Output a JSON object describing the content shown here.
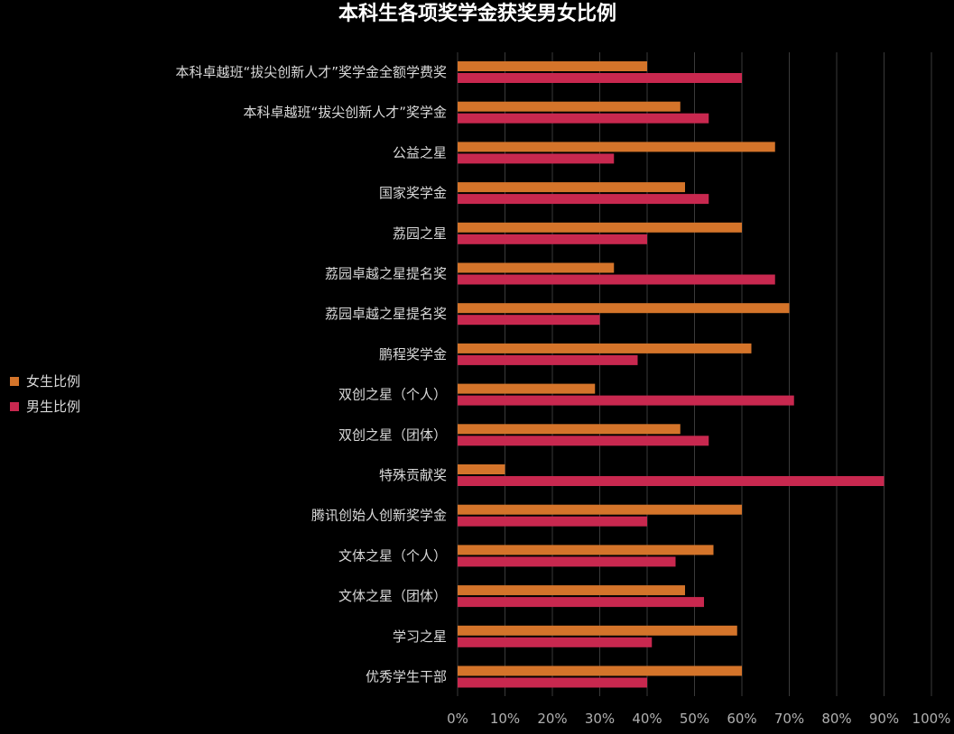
{
  "chart_data": {
    "type": "bar",
    "orientation": "horizontal",
    "title": "本科生各项奖学金获奖男女比例",
    "categories": [
      "本科卓越班“拔尖创新人才”奖学金全额学费奖",
      "本科卓越班“拔尖创新人才”奖学金",
      "公益之星",
      "国家奖学金",
      "荔园之星",
      "荔园卓越之星提名奖",
      "荔园卓越之星提名奖",
      "鹏程奖学金",
      "双创之星（个人）",
      "双创之星（团体）",
      "特殊贡献奖",
      "腾讯创始人创新奖学金",
      "文体之星（个人）",
      "文体之星（团体）",
      "学习之星",
      "优秀学生干部"
    ],
    "series": [
      {
        "name": "女生比例",
        "color": "#d4742a",
        "values": [
          0.4,
          0.47,
          0.67,
          0.48,
          0.6,
          0.33,
          0.7,
          0.62,
          0.29,
          0.47,
          0.1,
          0.6,
          0.54,
          0.48,
          0.59,
          0.6
        ]
      },
      {
        "name": "男生比例",
        "color": "#c8284f",
        "values": [
          0.6,
          0.53,
          0.33,
          0.53,
          0.4,
          0.67,
          0.3,
          0.38,
          0.71,
          0.53,
          0.9,
          0.4,
          0.46,
          0.52,
          0.41,
          0.4
        ]
      }
    ],
    "xlim": [
      0,
      1
    ],
    "xticks": [
      "0%",
      "10%",
      "20%",
      "30%",
      "40%",
      "50%",
      "60%",
      "70%",
      "80%",
      "90%",
      "100%"
    ],
    "grid": true,
    "legend_position": "left"
  }
}
